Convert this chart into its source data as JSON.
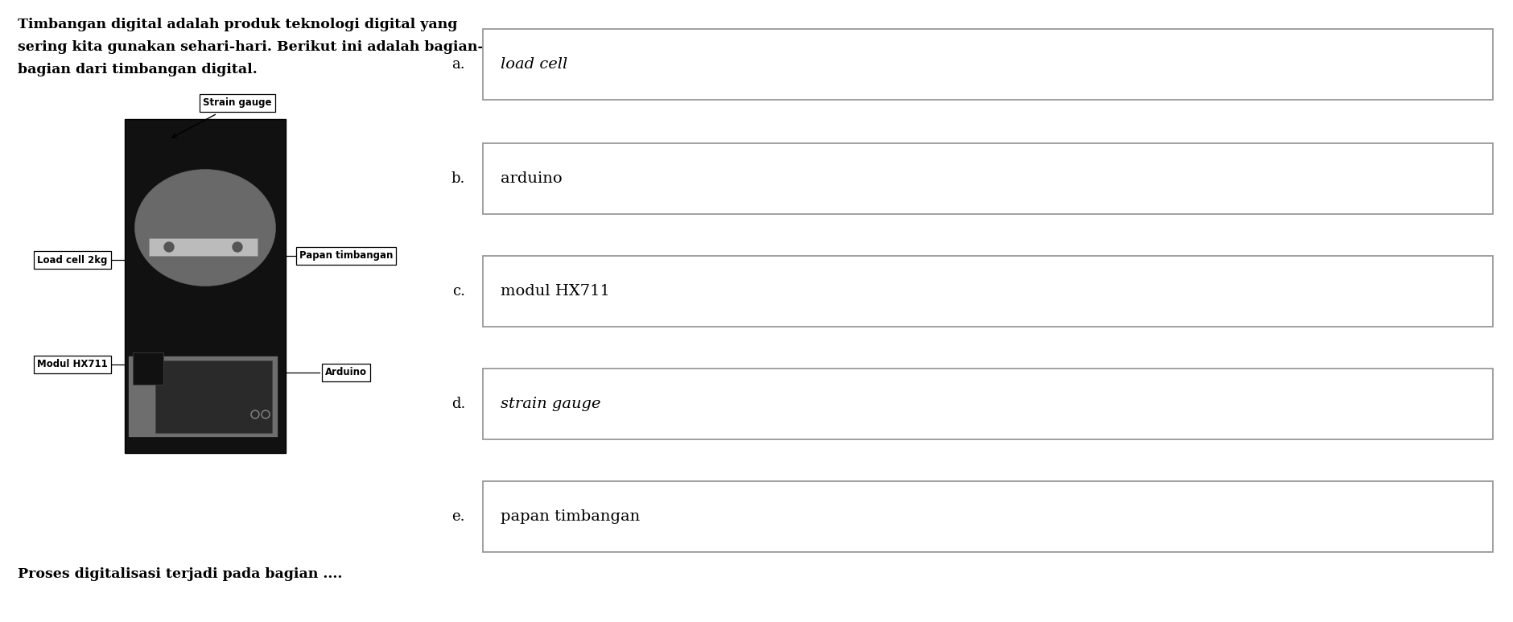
{
  "bg_color": "#ffffff",
  "paragraph_line1": "Timbangan digital adalah produk teknologi digital yang",
  "paragraph_line2": "sering kita gunakan sehari-hari. Berikut ini adalah bagian-",
  "paragraph_line3": "bagian dari timbangan digital.",
  "bottom_text": "Proses digitalisasi terjadi pada bagian ....",
  "options": [
    {
      "label": "a.",
      "text": "load cell",
      "italic": true
    },
    {
      "label": "b.",
      "text": "arduino",
      "italic": false
    },
    {
      "label": "c.",
      "text": "modul HX711",
      "italic": false
    },
    {
      "label": "d.",
      "text": "strain gauge",
      "italic": true
    },
    {
      "label": "e.",
      "text": "papan timbangan",
      "italic": false
    }
  ],
  "text_fontsize": 12.5,
  "option_label_fontsize": 13,
  "option_text_fontsize": 14
}
